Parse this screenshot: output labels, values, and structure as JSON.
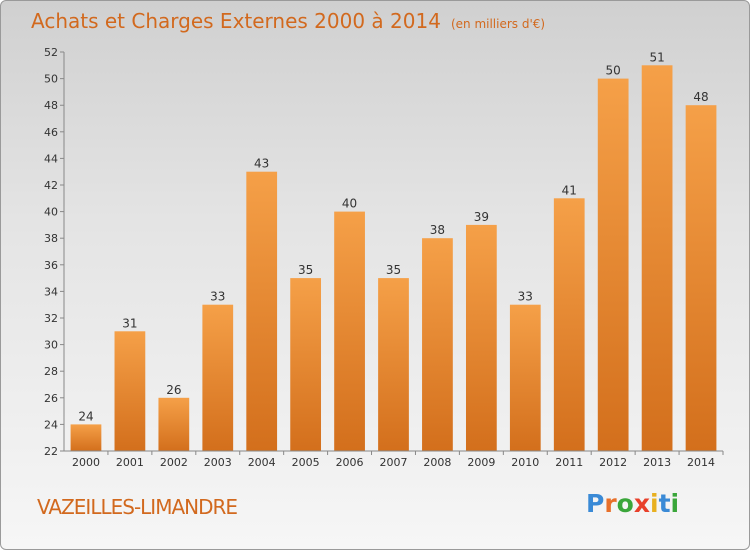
{
  "title": "Achats et Charges Externes 2000 à 2014",
  "subtitle": "(en milliers d'€)",
  "commune": "VAZEILLES-LIMANDRE",
  "logo": {
    "letters": [
      "P",
      "r",
      "o",
      "x",
      "i",
      "t",
      "i"
    ],
    "colors": [
      "#3a8ad6",
      "#e8702a",
      "#3aa63a",
      "#e8402a",
      "#e8b020",
      "#3a8ad6",
      "#3aa63a"
    ]
  },
  "colors": {
    "bar": "#f0913a",
    "bar_dark": "#d9731e",
    "accent": "#d2691e"
  },
  "chart_data": {
    "type": "bar",
    "title": "Achats et Charges Externes 2000 à 2014",
    "subtitle": "(en milliers d'€)",
    "categories": [
      "2000",
      "2001",
      "2002",
      "2003",
      "2004",
      "2005",
      "2006",
      "2007",
      "2008",
      "2009",
      "2010",
      "2011",
      "2012",
      "2013",
      "2014"
    ],
    "values": [
      24,
      31,
      26,
      33,
      43,
      35,
      40,
      35,
      38,
      39,
      33,
      41,
      50,
      51,
      48
    ],
    "ylim": [
      22,
      52
    ],
    "yticks": [
      22,
      24,
      26,
      28,
      30,
      32,
      34,
      36,
      38,
      40,
      42,
      44,
      46,
      48,
      50,
      52
    ],
    "grid": false,
    "xlabel": "",
    "ylabel": ""
  }
}
